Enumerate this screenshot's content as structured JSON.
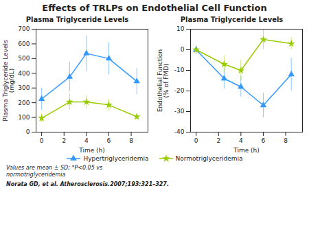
{
  "title": "Effects of TRLPs on Endothelial Cell Function",
  "annotations": [
    "Values are mean ± SD; *P<0.05 vs\nnormotriglyceridemia",
    "Norata GD, et al. Atherosclerosis.2007;193:321–327."
  ],
  "chart_data": [
    {
      "type": "line",
      "title": "Plasma Triglyceride Levels",
      "xlabel": "Time (h)",
      "ylabel": "Plasma Triglyceride Levels\n(mg/dL)",
      "x": [
        0,
        2.5,
        4,
        6,
        8.5
      ],
      "xlim": [
        -0.5,
        9.5
      ],
      "xticks": [
        0,
        2,
        4,
        6,
        8
      ],
      "ylim": [
        0,
        700
      ],
      "yticks": [
        0,
        100,
        200,
        300,
        400,
        500,
        600,
        700
      ],
      "grid": false,
      "legend": "bottom",
      "series": [
        {
          "name": "Hypertriglyceridemia",
          "color": "#3399ff",
          "marker": "triangle",
          "values": [
            225,
            375,
            535,
            500,
            345
          ],
          "errors": [
            75,
            100,
            120,
            110,
            90
          ]
        },
        {
          "name": "Normotriglyceridemia",
          "color": "#99cc00",
          "marker": "star",
          "values": [
            95,
            205,
            205,
            185,
            105
          ],
          "errors": [
            30,
            55,
            45,
            40,
            20
          ]
        }
      ]
    },
    {
      "type": "line",
      "title": "Plasma Triglyceride Levels",
      "xlabel": "Time (h)",
      "ylabel": "Endothelial Function\n(% of FMD)",
      "x": [
        0,
        2.5,
        4,
        6,
        8.5
      ],
      "xlim": [
        -0.5,
        9.5
      ],
      "xticks": [
        0,
        2,
        4,
        6,
        8
      ],
      "ylim": [
        -40,
        10
      ],
      "yticks": [
        -40,
        -30,
        -20,
        -10,
        0,
        10
      ],
      "grid": false,
      "legend": "bottom",
      "series": [
        {
          "name": "Hypertriglyceridemia",
          "color": "#3399ff",
          "marker": "triangle",
          "values": [
            0,
            -14,
            -18,
            -27,
            -12
          ],
          "errors": [
            2,
            5,
            5,
            6,
            8
          ]
        },
        {
          "name": "Normotriglyceridemia",
          "color": "#99cc00",
          "marker": "star",
          "values": [
            0,
            -7,
            -10,
            5,
            3
          ],
          "errors": [
            2,
            4,
            5,
            5,
            3
          ]
        }
      ]
    }
  ]
}
